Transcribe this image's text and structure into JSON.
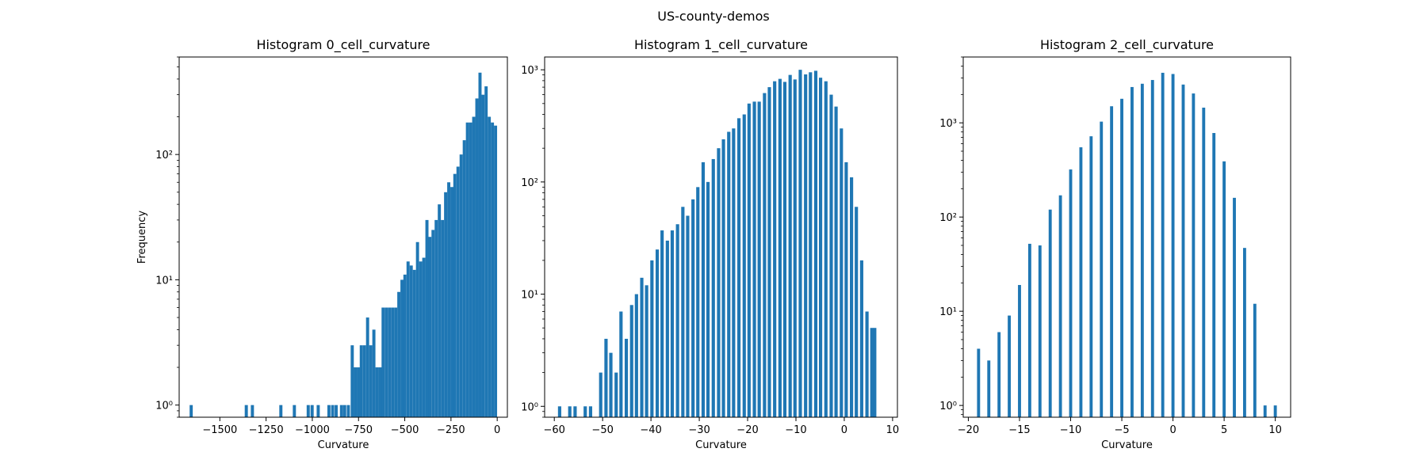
{
  "figure": {
    "suptitle": "US-county-demos"
  },
  "colors": {
    "bar": "#1f77b4",
    "axis": "#000000",
    "background": "#ffffff"
  },
  "chart_data": [
    {
      "type": "bar",
      "title": "Histogram 0_cell_curvature",
      "xlabel": "Curvature",
      "ylabel": "Frequency",
      "yscale": "log",
      "xlim": [
        -1720,
        55
      ],
      "ylim": [
        0.8,
        600
      ],
      "xticks": [
        -1500,
        -1250,
        -1000,
        -750,
        -500,
        -250,
        0
      ],
      "xtick_labels": [
        "−1500",
        "−1250",
        "−1000",
        "−750",
        "−500",
        "−250",
        "0"
      ],
      "yticks": [
        1,
        10,
        100
      ],
      "ytick_labels": [
        "10⁰",
        "10¹",
        "10²"
      ],
      "bin_width": 16.9,
      "x": [
        -1655,
        -1357,
        -1324,
        -1170,
        -1097,
        -1022,
        -1001,
        -968,
        -910,
        -890,
        -871,
        -842,
        -825,
        -805,
        -784,
        -768,
        -751,
        -735,
        -718,
        -701,
        -684,
        -667,
        -650,
        -633,
        -617,
        -600,
        -583,
        -566,
        -549,
        -532,
        -515,
        -499,
        -482,
        -465,
        -448,
        -431,
        -414,
        -397,
        -380,
        -364,
        -347,
        -330,
        -313,
        -296,
        -279,
        -262,
        -245,
        -229,
        -212,
        -195,
        -178,
        -161,
        -144,
        -127,
        -110,
        -93,
        -77,
        -60,
        -43,
        -26,
        -9
      ],
      "values": [
        1,
        1,
        1,
        1,
        1,
        1,
        1,
        1,
        1,
        1,
        1,
        1,
        1,
        1,
        3,
        2,
        2,
        3,
        3,
        5,
        3,
        4,
        2,
        2,
        6,
        6,
        6,
        6,
        6,
        8,
        10,
        11,
        14,
        13,
        12,
        20,
        14,
        15,
        30,
        22,
        25,
        30,
        40,
        30,
        50,
        60,
        55,
        70,
        80,
        100,
        130,
        180,
        180,
        200,
        280,
        450,
        300,
        350,
        200,
        180,
        170
      ]
    },
    {
      "type": "bar",
      "title": "Histogram 1_cell_curvature",
      "xlabel": "Curvature",
      "ylabel": "",
      "yscale": "log",
      "xlim": [
        -62,
        11
      ],
      "ylim": [
        0.8,
        1300
      ],
      "xticks": [
        -60,
        -50,
        -40,
        -30,
        -20,
        -10,
        0,
        10
      ],
      "xtick_labels": [
        "−60",
        "−50",
        "−40",
        "−30",
        "−20",
        "−10",
        "0",
        "10"
      ],
      "yticks": [
        1,
        10,
        100,
        1000
      ],
      "ytick_labels": [
        "10⁰",
        "10¹",
        "10²",
        "10³"
      ],
      "bin_width": 0.68,
      "x": [
        -58.9,
        -56.8,
        -55.7,
        -53.6,
        -52.5,
        -50.4,
        -49.3,
        -48.3,
        -47.2,
        -46.2,
        -45.1,
        -44.0,
        -43.0,
        -41.9,
        -40.9,
        -39.8,
        -38.7,
        -37.7,
        -36.6,
        -35.6,
        -34.5,
        -33.4,
        -32.4,
        -31.3,
        -30.3,
        -29.2,
        -28.2,
        -27.1,
        -26.0,
        -25.0,
        -23.9,
        -22.9,
        -21.8,
        -20.7,
        -19.7,
        -18.6,
        -17.6,
        -16.5,
        -15.5,
        -14.4,
        -13.3,
        -12.3,
        -11.2,
        -10.2,
        -9.1,
        -8.0,
        -7.0,
        -5.9,
        -4.9,
        -3.8,
        -2.7,
        -1.7,
        -0.6,
        0.4,
        1.5,
        2.5,
        3.6,
        4.7,
        5.7,
        6.3
      ],
      "values": [
        1,
        1,
        1,
        1,
        1,
        2,
        4,
        3,
        2,
        7,
        4,
        8,
        10,
        14,
        12,
        20,
        25,
        37,
        30,
        37,
        42,
        60,
        50,
        70,
        90,
        150,
        100,
        160,
        200,
        240,
        280,
        300,
        370,
        400,
        500,
        520,
        520,
        620,
        700,
        790,
        830,
        780,
        900,
        820,
        1000,
        910,
        950,
        980,
        850,
        790,
        600,
        470,
        300,
        150,
        110,
        60,
        20,
        7,
        5,
        5
      ]
    },
    {
      "type": "bar",
      "title": "Histogram 2_cell_curvature",
      "xlabel": "Curvature",
      "ylabel": "",
      "yscale": "log",
      "xlim": [
        -20.5,
        11.5
      ],
      "ylim": [
        0.75,
        5000
      ],
      "xticks": [
        -20,
        -15,
        -10,
        -5,
        0,
        5,
        10
      ],
      "xtick_labels": [
        "−20",
        "−15",
        "−10",
        "−5",
        "0",
        "5",
        "10"
      ],
      "yticks": [
        1,
        10,
        100,
        1000
      ],
      "ytick_labels": [
        "10⁰",
        "10¹",
        "10²",
        "10³"
      ],
      "bin_width": 0.3,
      "x": [
        -19,
        -18,
        -17,
        -16,
        -15,
        -14,
        -13,
        -12,
        -11,
        -10,
        -9,
        -8,
        -7,
        -6,
        -5,
        -4,
        -3,
        -2,
        -1,
        0,
        1,
        2,
        3,
        4,
        5,
        6,
        7,
        8,
        9,
        10
      ],
      "values": [
        4,
        3,
        6,
        9,
        19,
        52,
        50,
        120,
        170,
        320,
        550,
        720,
        1030,
        1500,
        1800,
        2400,
        2600,
        2850,
        3400,
        3300,
        2550,
        2050,
        1450,
        780,
        390,
        160,
        47,
        12,
        1,
        1
      ]
    }
  ]
}
